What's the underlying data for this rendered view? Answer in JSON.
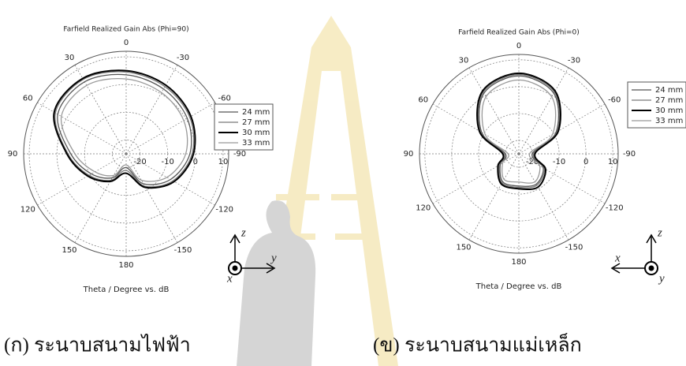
{
  "chart_data": [
    {
      "type": "polar",
      "title": "Farfield Realized Gain Abs (Phi=90)",
      "axis_label": "Theta / Degree vs. dB",
      "caption": "(ก) ระนาบสนามไฟฟ้า",
      "theta": [
        0,
        30,
        60,
        90,
        120,
        150,
        180,
        -150,
        -120,
        -90,
        -60,
        -30
      ],
      "thetaticks": [
        0,
        30,
        60,
        90,
        120,
        150,
        180,
        -150,
        -120,
        -90,
        -60,
        -30
      ],
      "rlim": [
        -25,
        12
      ],
      "rticks": [
        -20,
        -10,
        0,
        10
      ],
      "grid": true,
      "legend": "right",
      "series": [
        {
          "name": "24 mm",
          "color": "#555555",
          "values": [
            3.5,
            5,
            3.5,
            -5,
            -10.5,
            -15,
            -20,
            -12.5,
            -6.5,
            -2,
            0.5,
            2
          ]
        },
        {
          "name": "27 mm",
          "color": "#777777",
          "values": [
            4.5,
            6,
            4.5,
            -4,
            -9.5,
            -14,
            -19,
            -11.5,
            -5.5,
            -1.2,
            1.5,
            3
          ]
        },
        {
          "name": "30 mm",
          "color": "#000000",
          "values": [
            5,
            6.4,
            5,
            -3.6,
            -9,
            -13.5,
            -18,
            -11,
            -5,
            -0.7,
            2,
            3.6
          ]
        },
        {
          "name": "33 mm",
          "color": "#999999",
          "values": [
            2,
            3.5,
            2,
            -6.5,
            -12,
            -16,
            -21,
            -14,
            -8,
            -3.5,
            -1,
            0.5
          ]
        }
      ],
      "axes_labels": [
        "z",
        "y",
        "x"
      ]
    },
    {
      "type": "polar",
      "title": "Farfield Realized Gain Abs (Phi=0)",
      "axis_label": "Theta / Degree vs. dB",
      "caption": "(ข) ระนาบสนามแม่เหล็ก",
      "theta": [
        0,
        30,
        60,
        90,
        120,
        150,
        180,
        -150,
        -120,
        -90,
        -60,
        -30
      ],
      "thetaticks": [
        0,
        30,
        60,
        90,
        120,
        150,
        180,
        -150,
        -120,
        -90,
        -60,
        -30
      ],
      "rlim": [
        -25,
        12
      ],
      "rticks": [
        -20,
        -10,
        0,
        10
      ],
      "grid": true,
      "legend": "right",
      "series": [
        {
          "name": "24 mm",
          "color": "#555555",
          "values": [
            4,
            1,
            -9,
            -20,
            -17,
            -13,
            -13,
            -12,
            -14.5,
            -20,
            -9,
            1
          ]
        },
        {
          "name": "27 mm",
          "color": "#777777",
          "values": [
            4.5,
            1.5,
            -8.5,
            -19.5,
            -16.5,
            -12.5,
            -12.5,
            -11.5,
            -14,
            -19.5,
            -8.5,
            1.5
          ]
        },
        {
          "name": "30 mm",
          "color": "#000000",
          "values": [
            5,
            2,
            -8,
            -19,
            -16,
            -12,
            -12,
            -10.7,
            -13.5,
            -19,
            -8,
            2
          ]
        },
        {
          "name": "33 mm",
          "color": "#999999",
          "values": [
            2.5,
            -0.5,
            -10.5,
            -21,
            -18,
            -14,
            -14.5,
            -13,
            -16,
            -21,
            -10.5,
            -0.5
          ]
        }
      ],
      "axes_labels": [
        "z",
        "x",
        "y"
      ]
    }
  ]
}
